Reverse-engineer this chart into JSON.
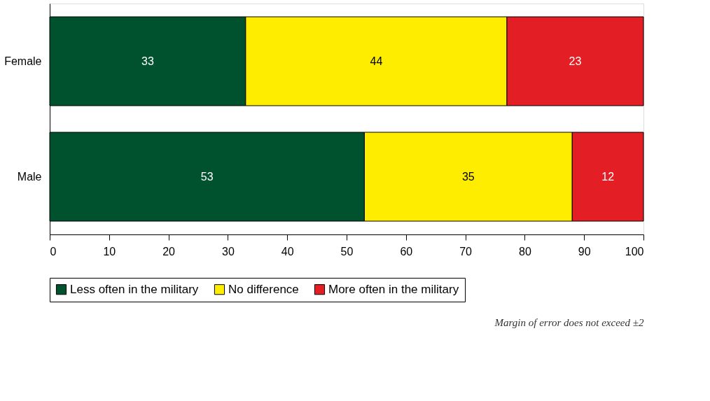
{
  "chart_data": {
    "type": "bar",
    "orientation": "horizontal",
    "stacked": true,
    "categories": [
      "Female",
      "Male"
    ],
    "series": [
      {
        "name": "Less often in the military",
        "color": "#00512e",
        "values": [
          33,
          53
        ]
      },
      {
        "name": "No difference",
        "color": "#ffed00",
        "values": [
          44,
          35
        ]
      },
      {
        "name": "More often in the military",
        "color": "#e31e24",
        "values": [
          23,
          12
        ]
      }
    ],
    "xlim": [
      0,
      100
    ],
    "xticks": [
      0,
      10,
      20,
      30,
      40,
      50,
      60,
      70,
      80,
      90,
      100
    ],
    "grid": false,
    "legend": "bottom",
    "data_labels": true,
    "annotations": [
      "Margin of error does not exceed ±2"
    ]
  }
}
